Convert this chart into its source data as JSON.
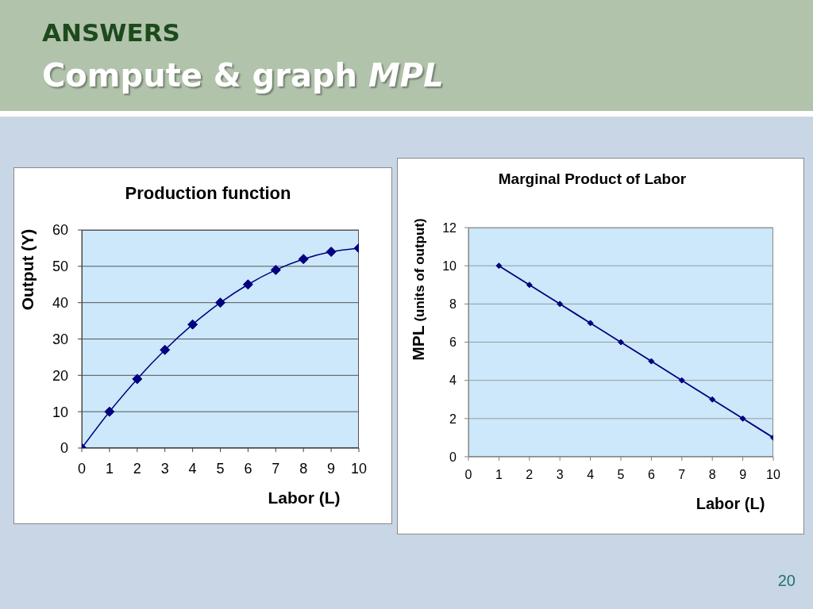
{
  "chart_data": [
    {
      "type": "line",
      "title": "Production function",
      "xlabel": "Labor (L)",
      "ylabel": "Output (Y)",
      "annotations": [
        "ANSWERS",
        "Compute & graph MPL"
      ],
      "x": [
        0,
        1,
        2,
        3,
        4,
        5,
        6,
        7,
        8,
        9,
        10
      ],
      "values": [
        0,
        10,
        19,
        27,
        34,
        40,
        45,
        49,
        52,
        54,
        55
      ],
      "color": "#000080",
      "xlim": [
        0,
        10
      ],
      "xticks": [
        0,
        1,
        2,
        3,
        4,
        5,
        6,
        7,
        8,
        9,
        10
      ],
      "ylim": [
        0,
        60
      ],
      "yticks": [
        0,
        10,
        20,
        30,
        40,
        50,
        60
      ],
      "grid": "y",
      "marker": "diamond"
    },
    {
      "type": "line",
      "title": "Marginal Product of Labor",
      "xlabel": "Labor (L)",
      "ylabel": "MPL (units of output)",
      "annotations": [
        "20"
      ],
      "x": [
        1,
        2,
        3,
        4,
        5,
        6,
        7,
        8,
        9,
        10
      ],
      "values": [
        10,
        9,
        8,
        7,
        6,
        5,
        4,
        3,
        2,
        1
      ],
      "color": "#000080",
      "xlim": [
        0,
        10
      ],
      "xticks": [
        0,
        1,
        2,
        3,
        4,
        5,
        6,
        7,
        8,
        9,
        10
      ],
      "ylim": [
        0,
        12
      ],
      "yticks": [
        0,
        2,
        4,
        6,
        8,
        10,
        12
      ],
      "grid": "y",
      "marker": "diamond"
    }
  ]
}
